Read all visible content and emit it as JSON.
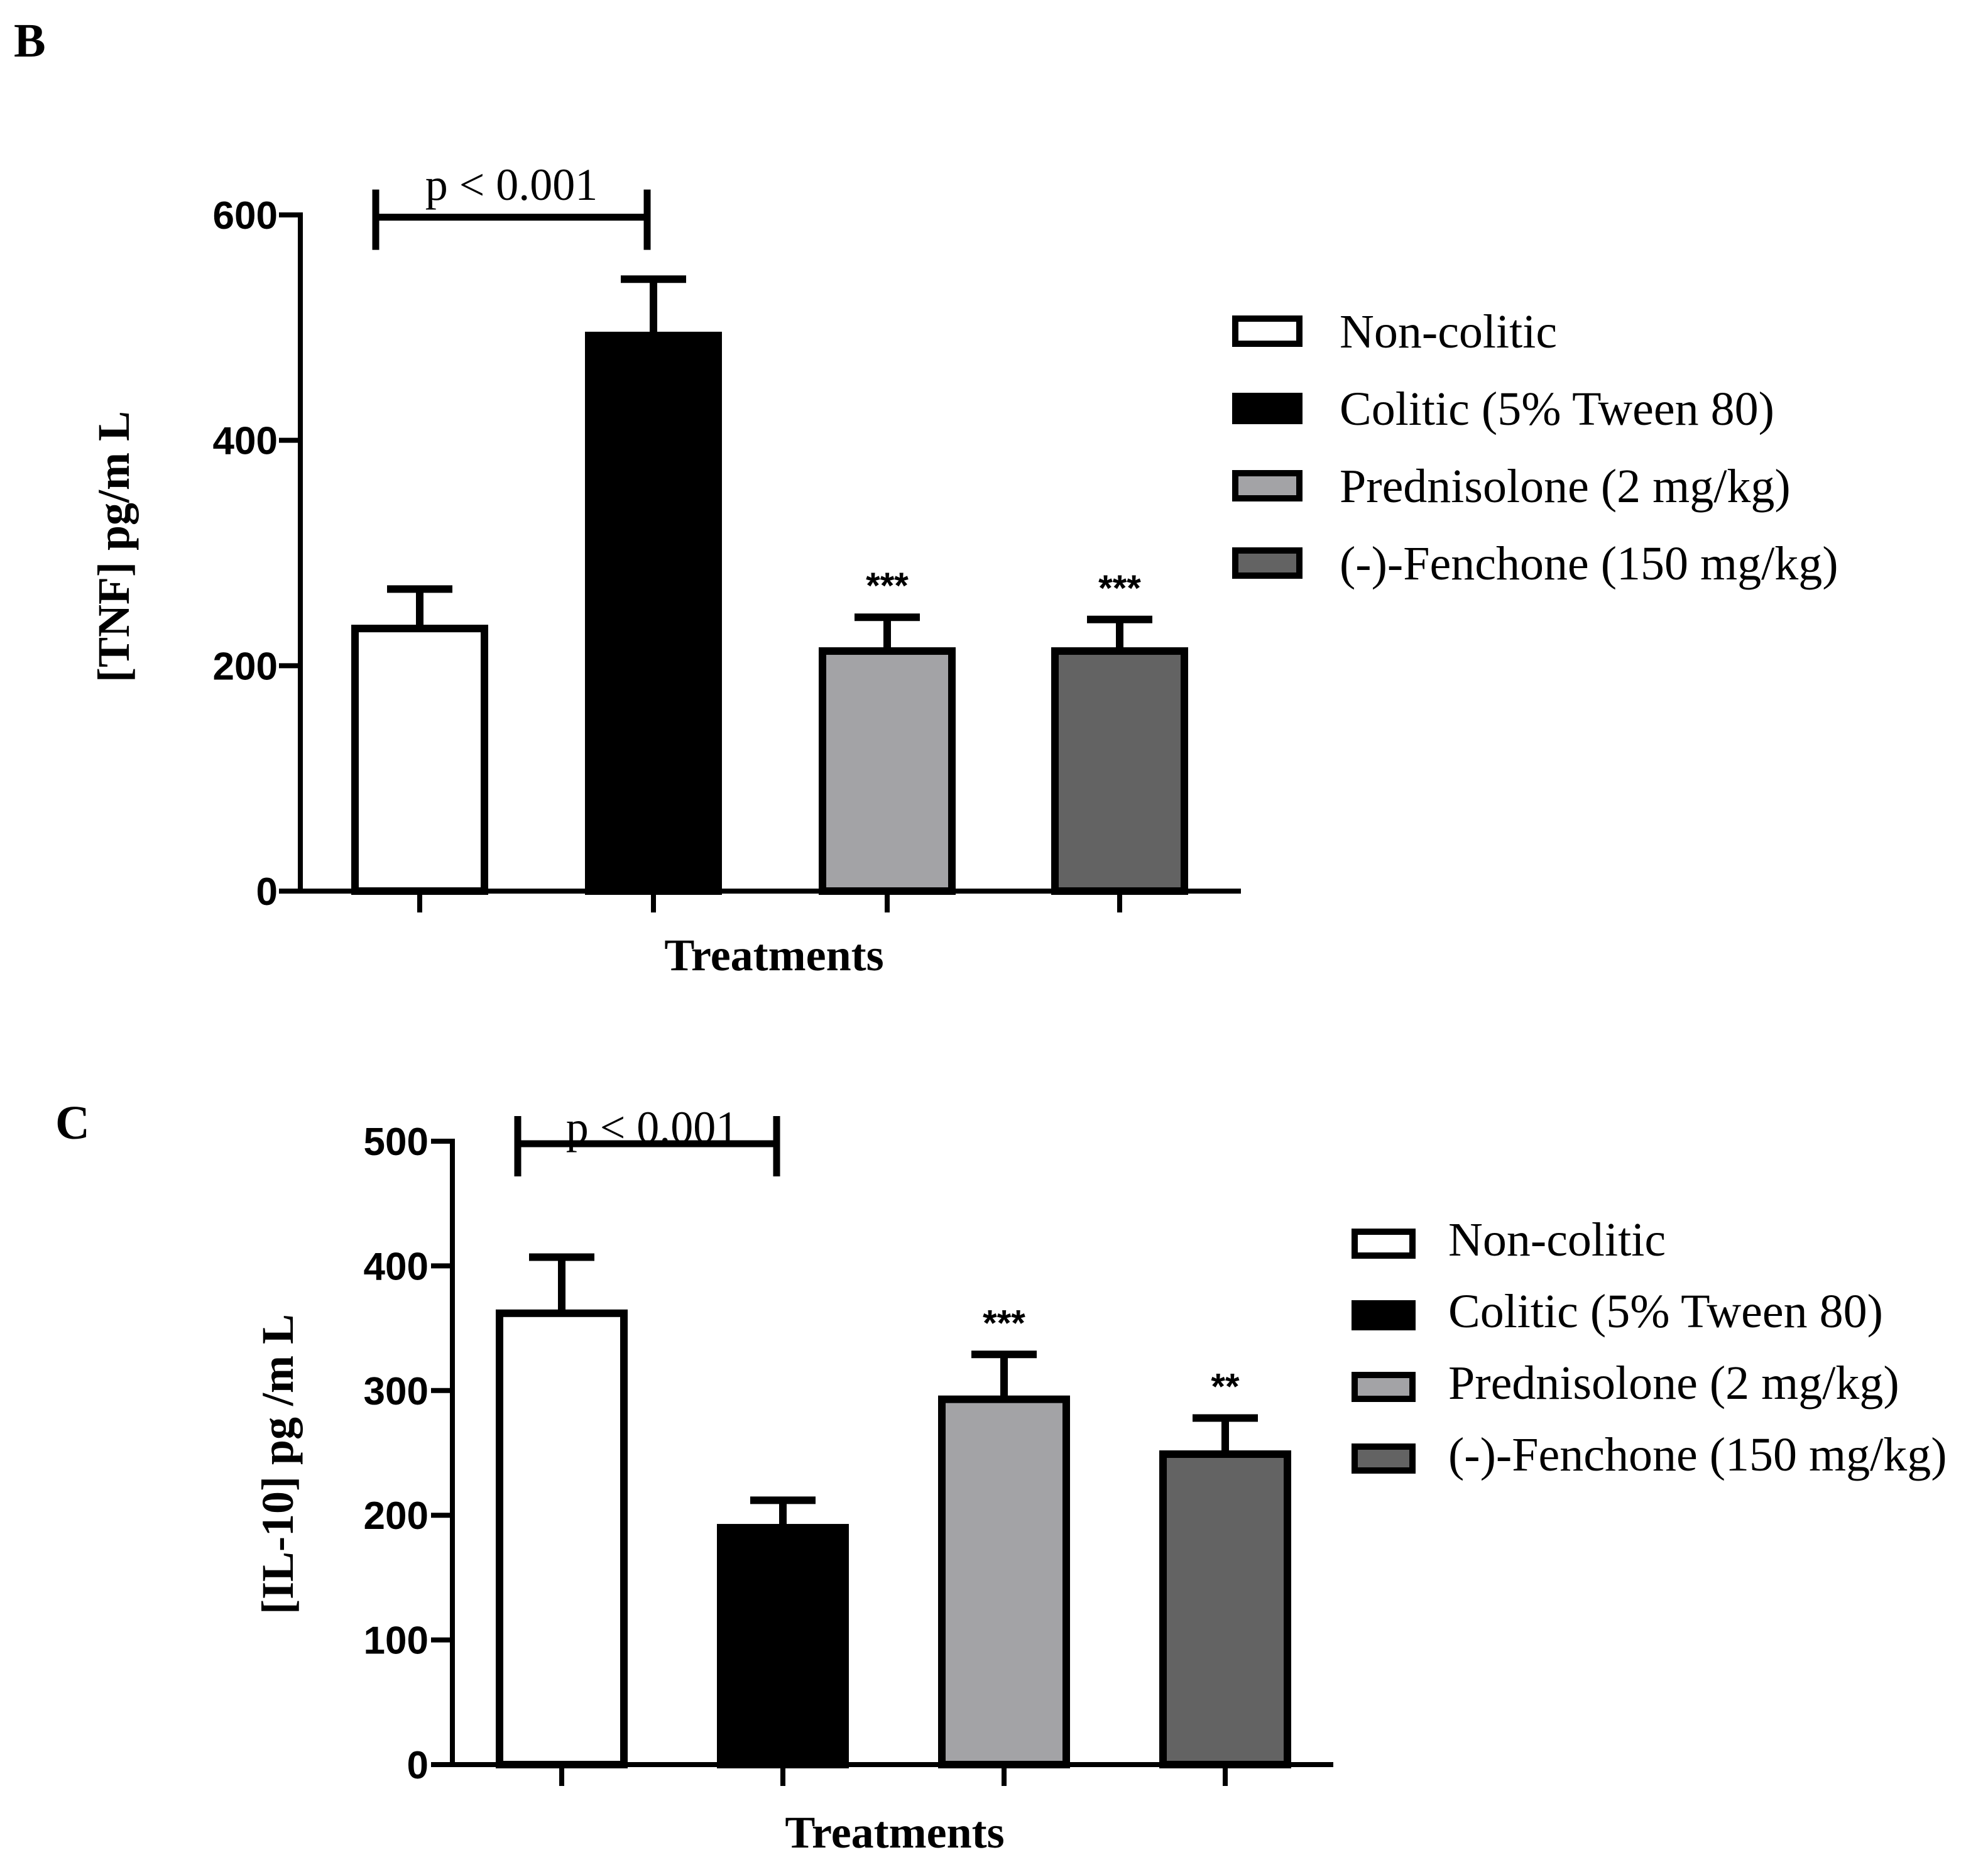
{
  "figure": {
    "panels": [
      "B",
      "C"
    ]
  },
  "chart_data": [
    {
      "type": "bar",
      "panel": "B",
      "title": "",
      "xlabel": "Treatments",
      "ylabel": "[TNF] pg/m L",
      "ylim": [
        0,
        600
      ],
      "yticks": [
        0,
        200,
        400,
        600
      ],
      "categories": [
        "Non-colitic",
        "Colitic (5% Tween 80)",
        "Prednisolone (2 mg/kg)",
        "(-)-Fenchone (150 mg/kg)"
      ],
      "values": [
        233,
        493,
        213,
        213
      ],
      "errors": [
        35,
        50,
        30,
        28
      ],
      "significance": [
        "",
        "",
        "***",
        "***"
      ],
      "bracket": {
        "label": "p < 0.001",
        "from": 0,
        "to": 1,
        "y": 598
      },
      "colors": [
        "#ffffff",
        "#000000",
        "#a3a3a6",
        "#636363"
      ],
      "legend": [
        "Non-colitic",
        "Colitic (5% Tween 80)",
        "Prednisolone (2 mg/kg)",
        "(-)-Fenchone (150 mg/kg)"
      ],
      "legend_position": "right"
    },
    {
      "type": "bar",
      "panel": "C",
      "title": "",
      "xlabel": "Treatments",
      "ylabel": "[IL-10] pg /m L",
      "ylim": [
        0,
        500
      ],
      "yticks": [
        0,
        100,
        200,
        300,
        400,
        500
      ],
      "categories": [
        "Non-colitic",
        "Colitic (5% Tween 80)",
        "Prednisolone (2 mg/kg)",
        "(-)-Fenchone (150 mg/kg)"
      ],
      "values": [
        362,
        190,
        293,
        249
      ],
      "errors": [
        45,
        22,
        36,
        29
      ],
      "significance": [
        "",
        "",
        "***",
        "**"
      ],
      "bracket": {
        "label": "p < 0.001",
        "from": 0,
        "to": 1,
        "y": 498
      },
      "colors": [
        "#ffffff",
        "#000000",
        "#a3a3a6",
        "#636363"
      ],
      "legend": [
        "Non-colitic",
        "Colitic (5% Tween 80)",
        "Prednisolone (2 mg/kg)",
        "(-)-Fenchone (150 mg/kg)"
      ],
      "legend_position": "right"
    }
  ]
}
